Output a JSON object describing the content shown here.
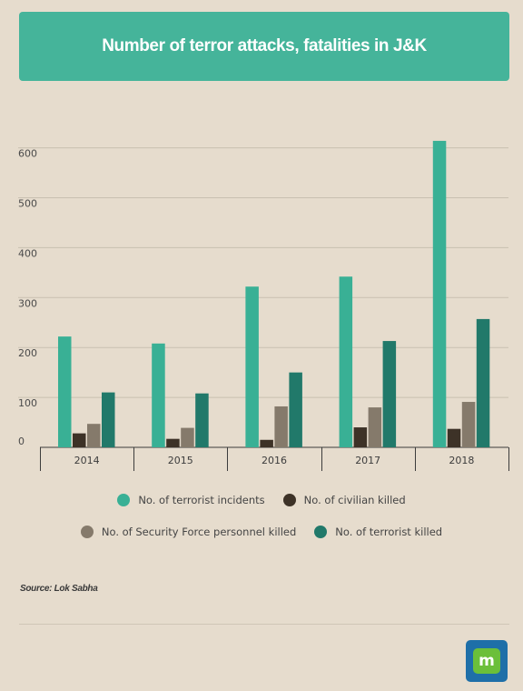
{
  "header": {
    "title": "Number of terror attacks, fatalities in J&K"
  },
  "chart_data": {
    "type": "bar",
    "title": "Number of terror attacks, fatalities in J&K",
    "xlabel": "",
    "ylabel": "",
    "categories": [
      "2014",
      "2015",
      "2016",
      "2017",
      "2018"
    ],
    "yticks": [
      "0",
      "100",
      "200",
      "300",
      "400",
      "500",
      "600"
    ],
    "ylim": [
      0,
      600
    ],
    "grid": true,
    "legend_position": "bottom",
    "series": [
      {
        "name": "No. of terrorist incidents",
        "color": "#39b095",
        "values": [
          222,
          208,
          322,
          342,
          614
        ]
      },
      {
        "name": "No. of civilian killed",
        "color": "#3d3227",
        "values": [
          28,
          17,
          15,
          40,
          37
        ]
      },
      {
        "name": "No. of Security Force personnel killed",
        "color": "#857a6b",
        "values": [
          47,
          39,
          82,
          80,
          91
        ]
      },
      {
        "name": "No. of terrorist killed",
        "color": "#21796a",
        "values": [
          110,
          108,
          150,
          213,
          257
        ]
      }
    ]
  },
  "source": "Source: Lok Sabha",
  "logo": {
    "letter": "m"
  }
}
